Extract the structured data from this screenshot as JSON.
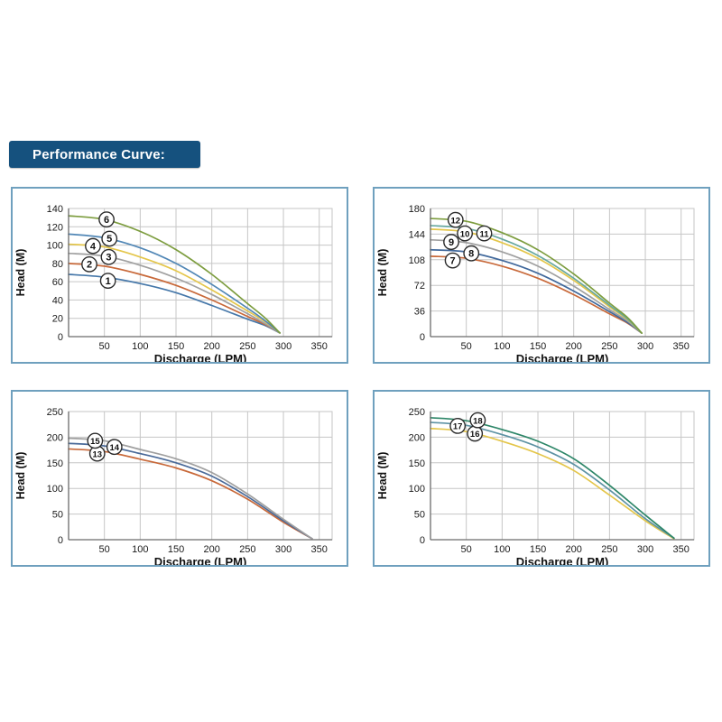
{
  "header": {
    "title": "Performance Curve:",
    "badge_color": "#15517E",
    "text_color": "#FFFFFF"
  },
  "layout": {
    "panel_border_color": "#6FA0BE",
    "grid_color": "#C6C6C6",
    "axis_color": "#6B6B6B",
    "tick_label_color": "#1A1A1A"
  },
  "chart_data": [
    {
      "type": "line",
      "position": "top-left",
      "xlabel": "Discharge (LPM)",
      "ylabel": "Head (M)",
      "xlim": [
        0,
        368
      ],
      "ylim": [
        0,
        140
      ],
      "xticks": [
        50,
        100,
        150,
        200,
        250,
        300,
        350
      ],
      "yticks": [
        0,
        20,
        40,
        60,
        80,
        100,
        120,
        140
      ],
      "grid": true,
      "series": [
        {
          "name": "1",
          "color": "#4577A9",
          "points": [
            [
              0,
              68
            ],
            [
              50,
              65
            ],
            [
              100,
              58
            ],
            [
              150,
              48
            ],
            [
              200,
              34
            ],
            [
              250,
              19
            ],
            [
              275,
              12
            ],
            [
              295,
              4
            ]
          ]
        },
        {
          "name": "2",
          "color": "#C8693A",
          "points": [
            [
              0,
              80
            ],
            [
              50,
              77
            ],
            [
              100,
              68
            ],
            [
              150,
              56
            ],
            [
              200,
              40
            ],
            [
              250,
              22
            ],
            [
              275,
              13
            ],
            [
              295,
              4
            ]
          ]
        },
        {
          "name": "3",
          "color": "#A0A0A0",
          "points": [
            [
              0,
              91
            ],
            [
              50,
              88
            ],
            [
              100,
              78
            ],
            [
              150,
              64
            ],
            [
              200,
              46
            ],
            [
              250,
              25
            ],
            [
              275,
              14
            ],
            [
              295,
              4
            ]
          ]
        },
        {
          "name": "4",
          "color": "#E4C64B",
          "points": [
            [
              0,
              101
            ],
            [
              50,
              98
            ],
            [
              100,
              87
            ],
            [
              150,
              72
            ],
            [
              200,
              51
            ],
            [
              250,
              28
            ],
            [
              275,
              16
            ],
            [
              295,
              4
            ]
          ]
        },
        {
          "name": "5",
          "color": "#5187B6",
          "points": [
            [
              0,
              112
            ],
            [
              50,
              108
            ],
            [
              100,
              97
            ],
            [
              150,
              80
            ],
            [
              200,
              57
            ],
            [
              250,
              31
            ],
            [
              275,
              17
            ],
            [
              295,
              4
            ]
          ]
        },
        {
          "name": "6",
          "color": "#7D9D3F",
          "points": [
            [
              0,
              132
            ],
            [
              50,
              128
            ],
            [
              100,
              115
            ],
            [
              150,
              95
            ],
            [
              200,
              68
            ],
            [
              250,
              36
            ],
            [
              275,
              20
            ],
            [
              295,
              4
            ]
          ]
        }
      ],
      "labels": [
        {
          "text": "1",
          "x": 55,
          "y": 61
        },
        {
          "text": "2",
          "x": 29,
          "y": 79
        },
        {
          "text": "3",
          "x": 56,
          "y": 87
        },
        {
          "text": "4",
          "x": 34,
          "y": 99
        },
        {
          "text": "5",
          "x": 57,
          "y": 107
        },
        {
          "text": "6",
          "x": 53,
          "y": 128
        }
      ]
    },
    {
      "type": "line",
      "position": "top-right",
      "xlabel": "Discharge (LPM)",
      "ylabel": "Head (M)",
      "xlim": [
        0,
        368
      ],
      "ylim": [
        0,
        180
      ],
      "xticks": [
        50,
        100,
        150,
        200,
        250,
        300,
        350
      ],
      "yticks": [
        0,
        36,
        72,
        108,
        144,
        180
      ],
      "grid": true,
      "series": [
        {
          "name": "7",
          "color": "#C8693A",
          "points": [
            [
              0,
              113
            ],
            [
              50,
              110
            ],
            [
              100,
              99
            ],
            [
              150,
              82
            ],
            [
              200,
              59
            ],
            [
              250,
              32
            ],
            [
              275,
              19
            ],
            [
              295,
              5
            ]
          ]
        },
        {
          "name": "8",
          "color": "#41699C",
          "points": [
            [
              0,
              122
            ],
            [
              50,
              119
            ],
            [
              100,
              107
            ],
            [
              150,
              89
            ],
            [
              200,
              64
            ],
            [
              250,
              35
            ],
            [
              275,
              20
            ],
            [
              295,
              5
            ]
          ]
        },
        {
          "name": "9",
          "color": "#A0A0A0",
          "points": [
            [
              0,
              136
            ],
            [
              50,
              132
            ],
            [
              100,
              119
            ],
            [
              150,
              99
            ],
            [
              200,
              71
            ],
            [
              250,
              38
            ],
            [
              275,
              22
            ],
            [
              295,
              5
            ]
          ]
        },
        {
          "name": "10",
          "color": "#E4C64B",
          "points": [
            [
              0,
              151
            ],
            [
              50,
              147
            ],
            [
              100,
              132
            ],
            [
              150,
              110
            ],
            [
              200,
              79
            ],
            [
              250,
              42
            ],
            [
              275,
              24
            ],
            [
              295,
              5
            ]
          ]
        },
        {
          "name": "11",
          "color": "#68A89F",
          "points": [
            [
              0,
              156
            ],
            [
              50,
              152
            ],
            [
              100,
              137
            ],
            [
              150,
              114
            ],
            [
              200,
              82
            ],
            [
              250,
              44
            ],
            [
              275,
              25
            ],
            [
              295,
              5
            ]
          ]
        },
        {
          "name": "12",
          "color": "#7D9D3F",
          "points": [
            [
              0,
              166
            ],
            [
              50,
              162
            ],
            [
              100,
              146
            ],
            [
              150,
              122
            ],
            [
              200,
              88
            ],
            [
              250,
              47
            ],
            [
              275,
              27
            ],
            [
              295,
              5
            ]
          ]
        }
      ],
      "labels": [
        {
          "text": "7",
          "x": 31,
          "y": 107
        },
        {
          "text": "8",
          "x": 57,
          "y": 117
        },
        {
          "text": "9",
          "x": 29,
          "y": 133
        },
        {
          "text": "10",
          "x": 48,
          "y": 145
        },
        {
          "text": "11",
          "x": 75,
          "y": 145
        },
        {
          "text": "12",
          "x": 35,
          "y": 164
        }
      ]
    },
    {
      "type": "line",
      "position": "bottom-left",
      "xlabel": "Discharge (LPM)",
      "ylabel": "Head (M)",
      "xlim": [
        0,
        368
      ],
      "ylim": [
        0,
        250
      ],
      "xticks": [
        50,
        100,
        150,
        200,
        250,
        300,
        350
      ],
      "yticks": [
        0,
        50,
        100,
        150,
        200,
        250
      ],
      "grid": true,
      "series": [
        {
          "name": "13",
          "color": "#C8693A",
          "points": [
            [
              0,
              177
            ],
            [
              50,
              172
            ],
            [
              100,
              157
            ],
            [
              150,
              140
            ],
            [
              200,
              115
            ],
            [
              250,
              79
            ],
            [
              300,
              34
            ],
            [
              340,
              2
            ]
          ]
        },
        {
          "name": "14",
          "color": "#4A6A99",
          "points": [
            [
              0,
              188
            ],
            [
              50,
              183
            ],
            [
              100,
              168
            ],
            [
              150,
              150
            ],
            [
              200,
              124
            ],
            [
              250,
              84
            ],
            [
              300,
              37
            ],
            [
              340,
              2
            ]
          ]
        },
        {
          "name": "15",
          "color": "#A0A0A0",
          "points": [
            [
              0,
              198
            ],
            [
              50,
              193
            ],
            [
              100,
              176
            ],
            [
              150,
              158
            ],
            [
              200,
              131
            ],
            [
              250,
              89
            ],
            [
              300,
              40
            ],
            [
              340,
              2
            ]
          ]
        }
      ],
      "labels": [
        {
          "text": "13",
          "x": 40,
          "y": 168
        },
        {
          "text": "14",
          "x": 64,
          "y": 181
        },
        {
          "text": "15",
          "x": 37,
          "y": 193
        }
      ]
    },
    {
      "type": "line",
      "position": "bottom-right",
      "xlabel": "Discharge (LPM)",
      "ylabel": "Head (M)",
      "xlim": [
        0,
        368
      ],
      "ylim": [
        0,
        250
      ],
      "xticks": [
        50,
        100,
        150,
        200,
        250,
        300,
        350
      ],
      "yticks": [
        0,
        50,
        100,
        150,
        200,
        250
      ],
      "grid": true,
      "series": [
        {
          "name": "16",
          "color": "#E4C64B",
          "points": [
            [
              0,
              217
            ],
            [
              50,
              211
            ],
            [
              100,
              192
            ],
            [
              150,
              168
            ],
            [
              200,
              135
            ],
            [
              250,
              87
            ],
            [
              300,
              37
            ],
            [
              340,
              2
            ]
          ]
        },
        {
          "name": "17",
          "color": "#5E93A4",
          "points": [
            [
              0,
              229
            ],
            [
              50,
              223
            ],
            [
              100,
              205
            ],
            [
              150,
              181
            ],
            [
              200,
              147
            ],
            [
              250,
              97
            ],
            [
              300,
              41
            ],
            [
              340,
              3
            ]
          ]
        },
        {
          "name": "18",
          "color": "#2D8668",
          "points": [
            [
              0,
              238
            ],
            [
              50,
              232
            ],
            [
              100,
              215
            ],
            [
              150,
              192
            ],
            [
              200,
              158
            ],
            [
              250,
              106
            ],
            [
              300,
              48
            ],
            [
              340,
              3
            ]
          ]
        }
      ],
      "labels": [
        {
          "text": "16",
          "x": 62,
          "y": 207
        },
        {
          "text": "17",
          "x": 38,
          "y": 222
        },
        {
          "text": "18",
          "x": 66,
          "y": 233
        }
      ]
    }
  ]
}
